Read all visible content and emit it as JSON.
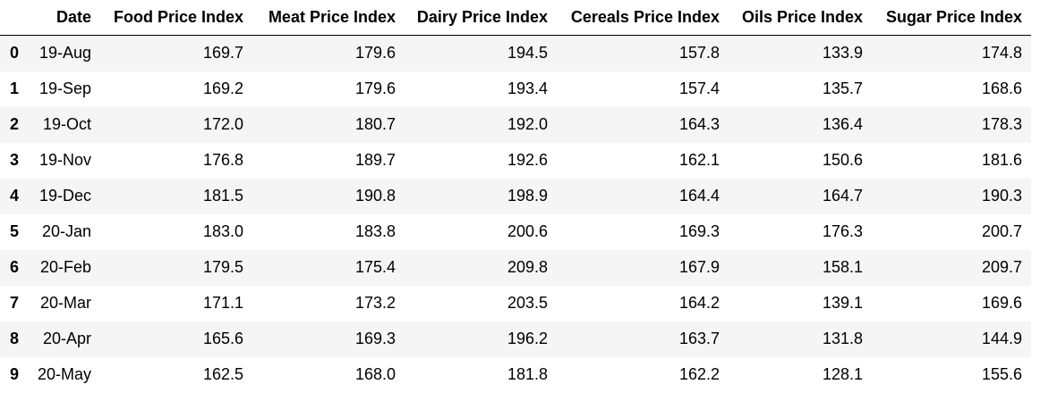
{
  "table": {
    "columns": [
      "",
      "Date",
      "Food Price Index",
      "Meat Price Index",
      "Dairy Price Index",
      "Cereals Price Index",
      "Oils Price Index",
      "Sugar Price Index"
    ],
    "rows": [
      {
        "index": "0",
        "date": "19-Aug",
        "food": "169.7",
        "meat": "179.6",
        "dairy": "194.5",
        "cereals": "157.8",
        "oils": "133.9",
        "sugar": "174.8"
      },
      {
        "index": "1",
        "date": "19-Sep",
        "food": "169.2",
        "meat": "179.6",
        "dairy": "193.4",
        "cereals": "157.4",
        "oils": "135.7",
        "sugar": "168.6"
      },
      {
        "index": "2",
        "date": "19-Oct",
        "food": "172.0",
        "meat": "180.7",
        "dairy": "192.0",
        "cereals": "164.3",
        "oils": "136.4",
        "sugar": "178.3"
      },
      {
        "index": "3",
        "date": "19-Nov",
        "food": "176.8",
        "meat": "189.7",
        "dairy": "192.6",
        "cereals": "162.1",
        "oils": "150.6",
        "sugar": "181.6"
      },
      {
        "index": "4",
        "date": "19-Dec",
        "food": "181.5",
        "meat": "190.8",
        "dairy": "198.9",
        "cereals": "164.4",
        "oils": "164.7",
        "sugar": "190.3"
      },
      {
        "index": "5",
        "date": "20-Jan",
        "food": "183.0",
        "meat": "183.8",
        "dairy": "200.6",
        "cereals": "169.3",
        "oils": "176.3",
        "sugar": "200.7"
      },
      {
        "index": "6",
        "date": "20-Feb",
        "food": "179.5",
        "meat": "175.4",
        "dairy": "209.8",
        "cereals": "167.9",
        "oils": "158.1",
        "sugar": "209.7"
      },
      {
        "index": "7",
        "date": "20-Mar",
        "food": "171.1",
        "meat": "173.2",
        "dairy": "203.5",
        "cereals": "164.2",
        "oils": "139.1",
        "sugar": "169.6"
      },
      {
        "index": "8",
        "date": "20-Apr",
        "food": "165.6",
        "meat": "169.3",
        "dairy": "196.2",
        "cereals": "163.7",
        "oils": "131.8",
        "sugar": "144.9"
      },
      {
        "index": "9",
        "date": "20-May",
        "food": "162.5",
        "meat": "168.0",
        "dairy": "181.8",
        "cereals": "162.2",
        "oils": "128.1",
        "sugar": "155.6"
      }
    ]
  }
}
